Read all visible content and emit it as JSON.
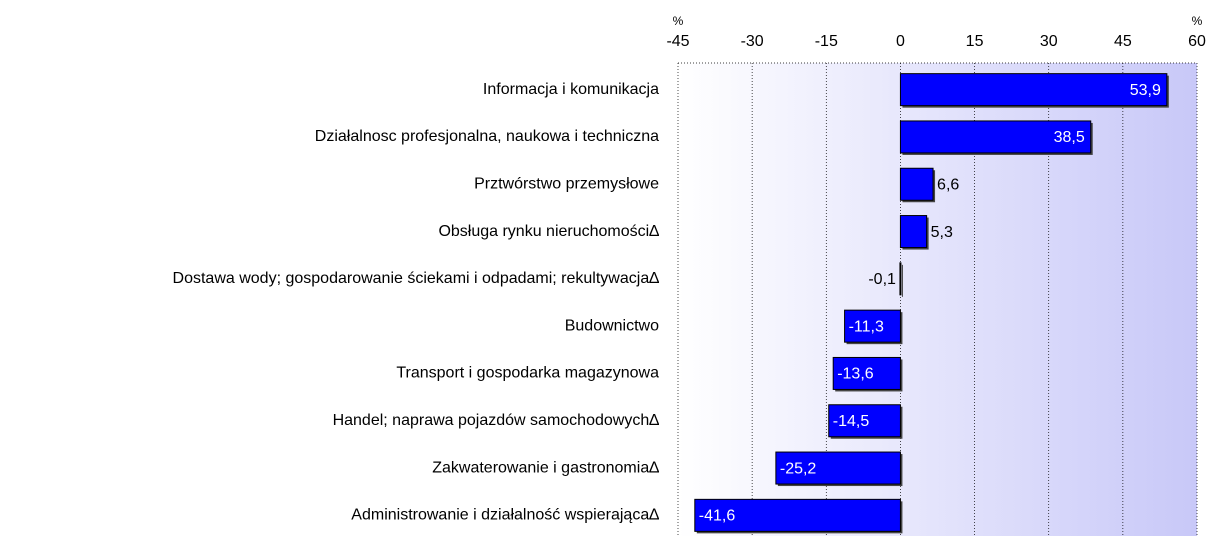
{
  "chart_data": {
    "type": "barh",
    "unit_labels": [
      "%",
      "%"
    ],
    "categories": [
      "Informacja i komunikacja",
      "Działalnosc profesjonalna, naukowa i techniczna",
      "Prztwórstwo przemysłowe",
      "Obsługa rynku nieruchomości∆",
      "Dostawa wody; gospodarowanie ściekami i odpadami; rekultywacja∆",
      "Budownictwo",
      "Transport i gospodarka magazynowa",
      "Handel; naprawa pojazdów samochodowych∆",
      "Zakwaterowanie i gastronomia∆",
      "Administrowanie i działalność wspierająca∆"
    ],
    "values": [
      53.9,
      38.5,
      6.6,
      5.3,
      -0.1,
      -11.3,
      -13.6,
      -14.5,
      -25.2,
      -41.6
    ],
    "value_labels": [
      "53,9",
      "38,5",
      "6,6",
      "5,3",
      "-0,1",
      "-11,3",
      "-13,6",
      "-14,5",
      "-25,2",
      "-41,6"
    ],
    "color": "#0000ff",
    "xlim": [
      -45,
      60
    ],
    "xticks": [
      -45,
      -30,
      -15,
      0,
      15,
      30,
      45,
      60
    ],
    "grid": true
  }
}
